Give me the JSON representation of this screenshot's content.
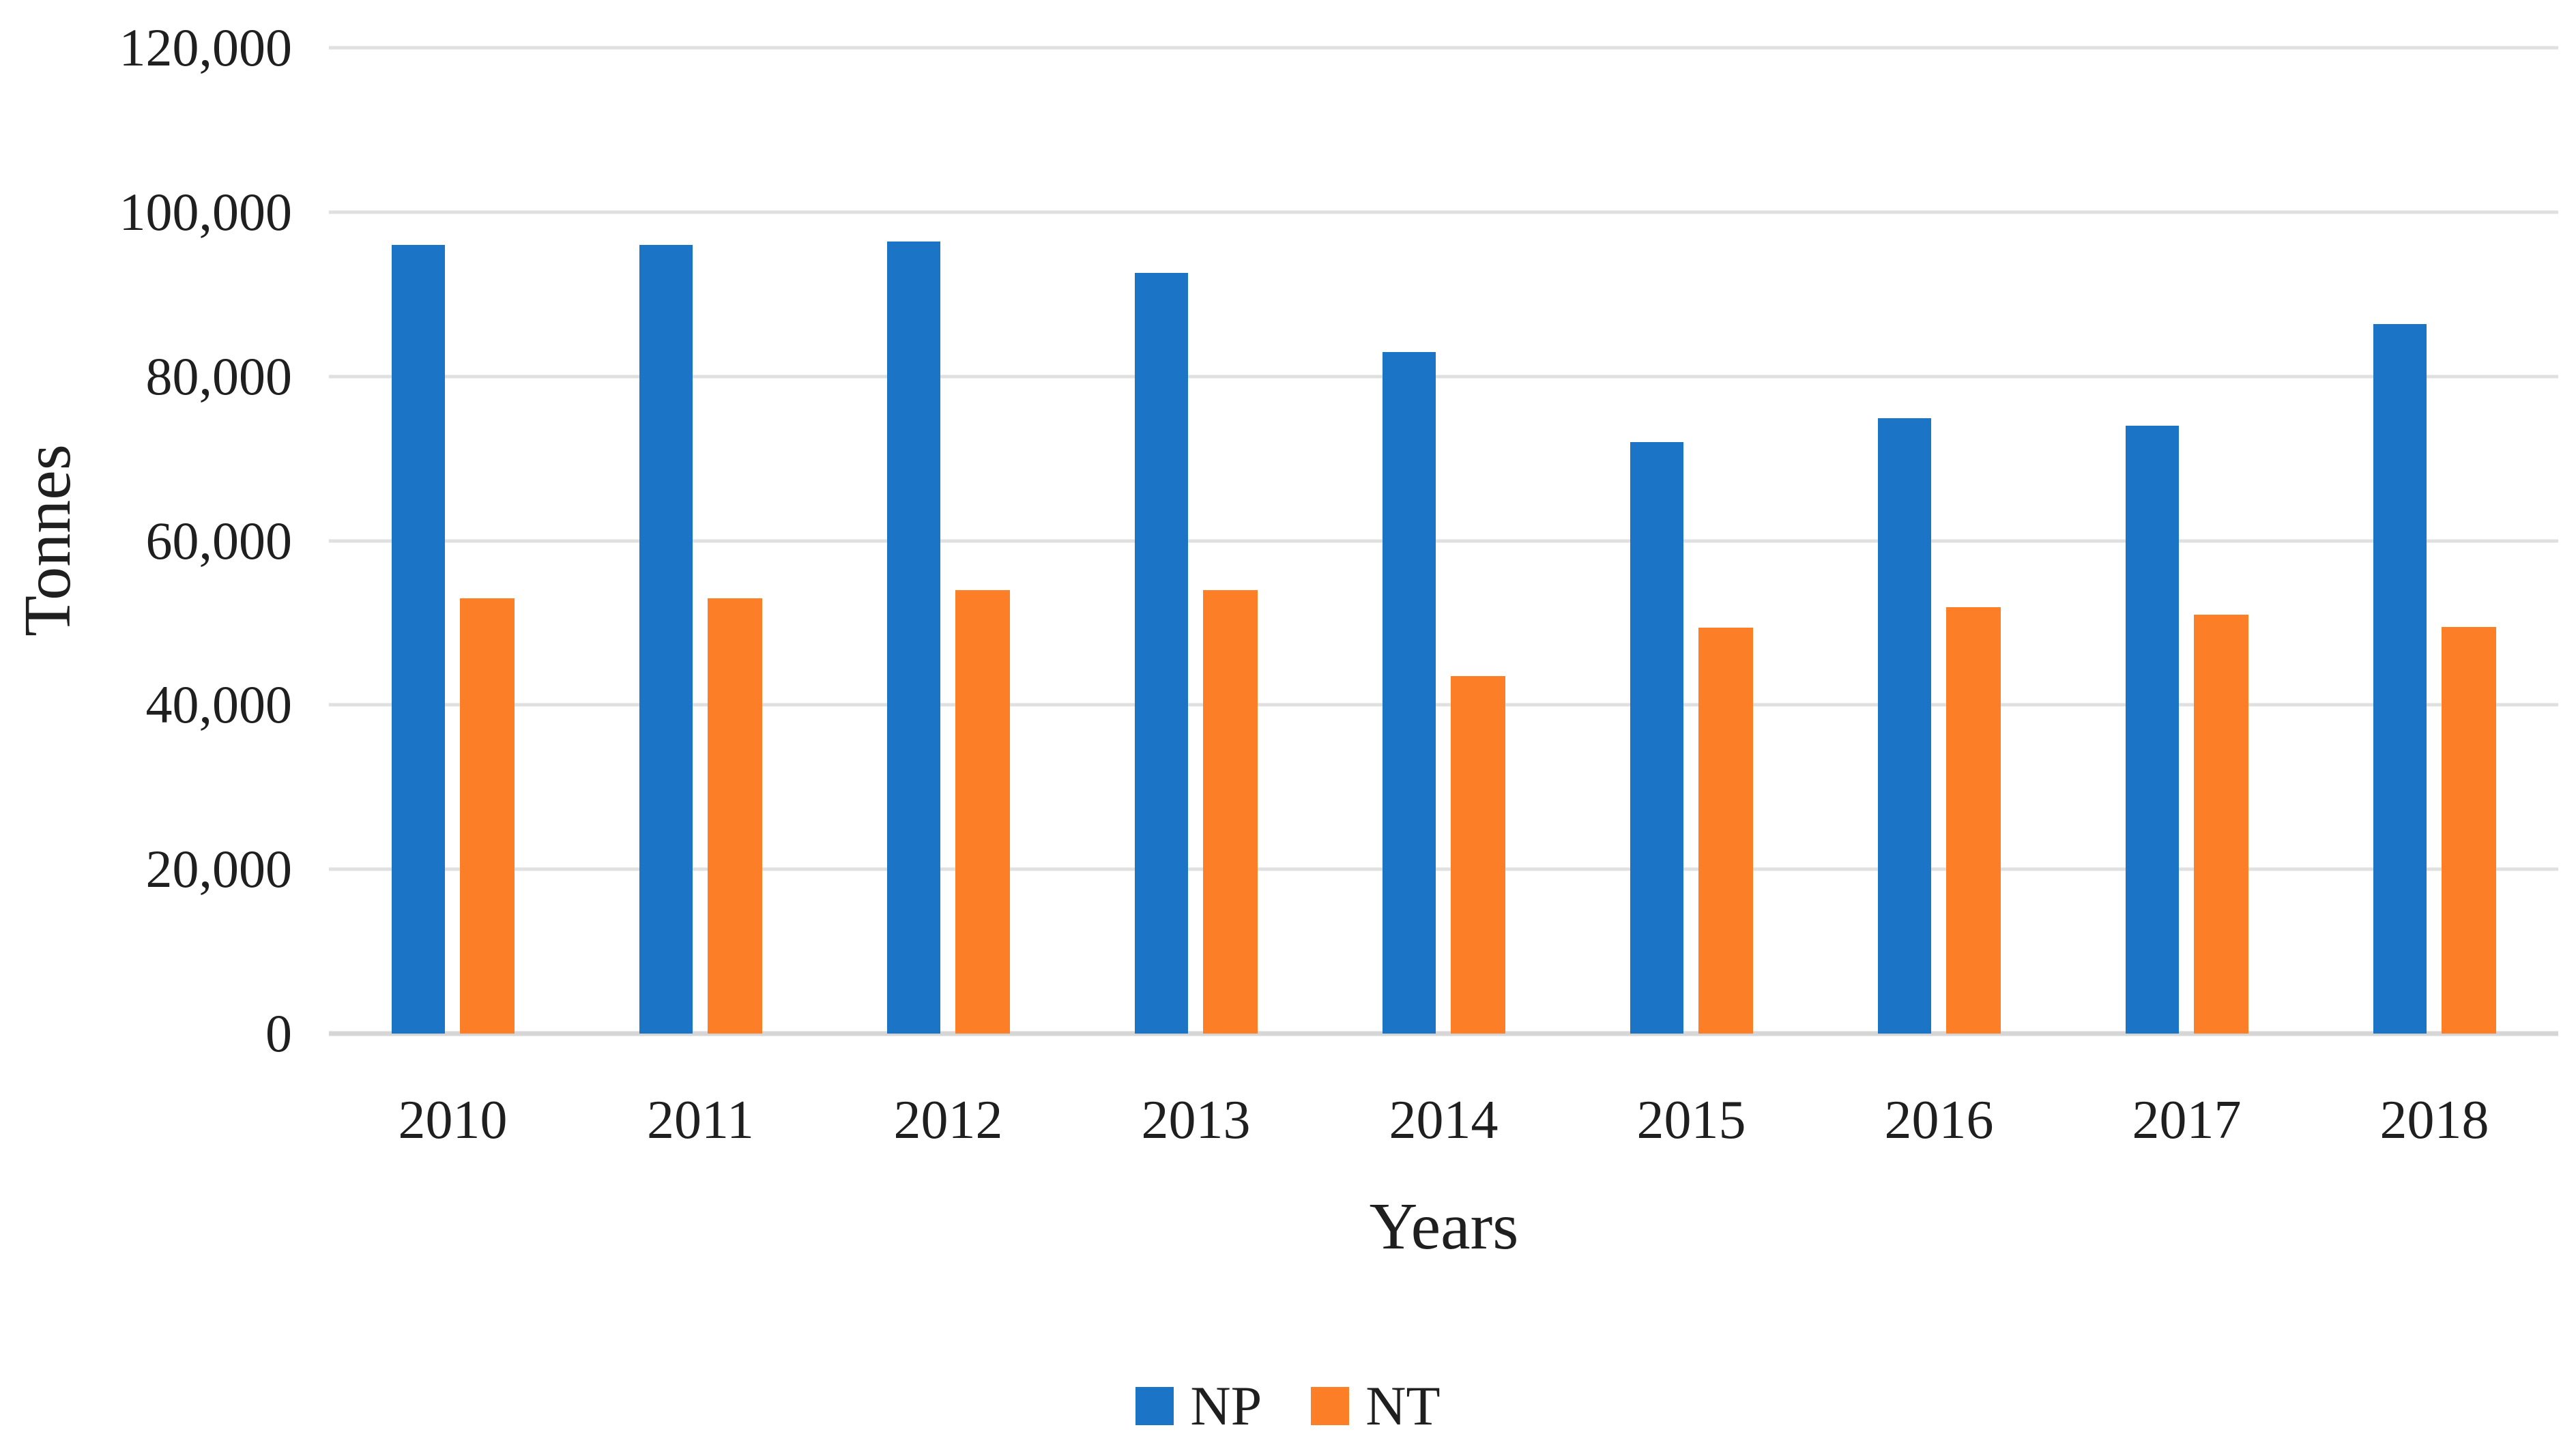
{
  "chart_data": {
    "type": "bar",
    "title": "",
    "categories": [
      "2010",
      "2011",
      "2012",
      "2013",
      "2014",
      "2015",
      "2016",
      "2017",
      "2018"
    ],
    "series": [
      {
        "name": "NP",
        "color": "#1c74c6",
        "values": [
          96000,
          96000,
          96400,
          92600,
          83000,
          72000,
          74900,
          74000,
          86400
        ]
      },
      {
        "name": "NT",
        "color": "#fc7e27",
        "values": [
          53000,
          53000,
          54000,
          54000,
          43500,
          49400,
          51900,
          51000,
          49500
        ]
      }
    ],
    "xlabel": "Years",
    "ylabel": "Tonnes",
    "ylim": [
      0,
      120000
    ],
    "ytick_step": 20000,
    "ytick_labels": [
      "0",
      "20,000",
      "40,000",
      "60,000",
      "80,000",
      "100,000",
      "120,000"
    ],
    "grid": "horizontal-only",
    "gridline_color": "#e0e0e0",
    "axis_line_color": "#d6d6d6",
    "legend_position": "bottom",
    "background": "#ffffff"
  }
}
